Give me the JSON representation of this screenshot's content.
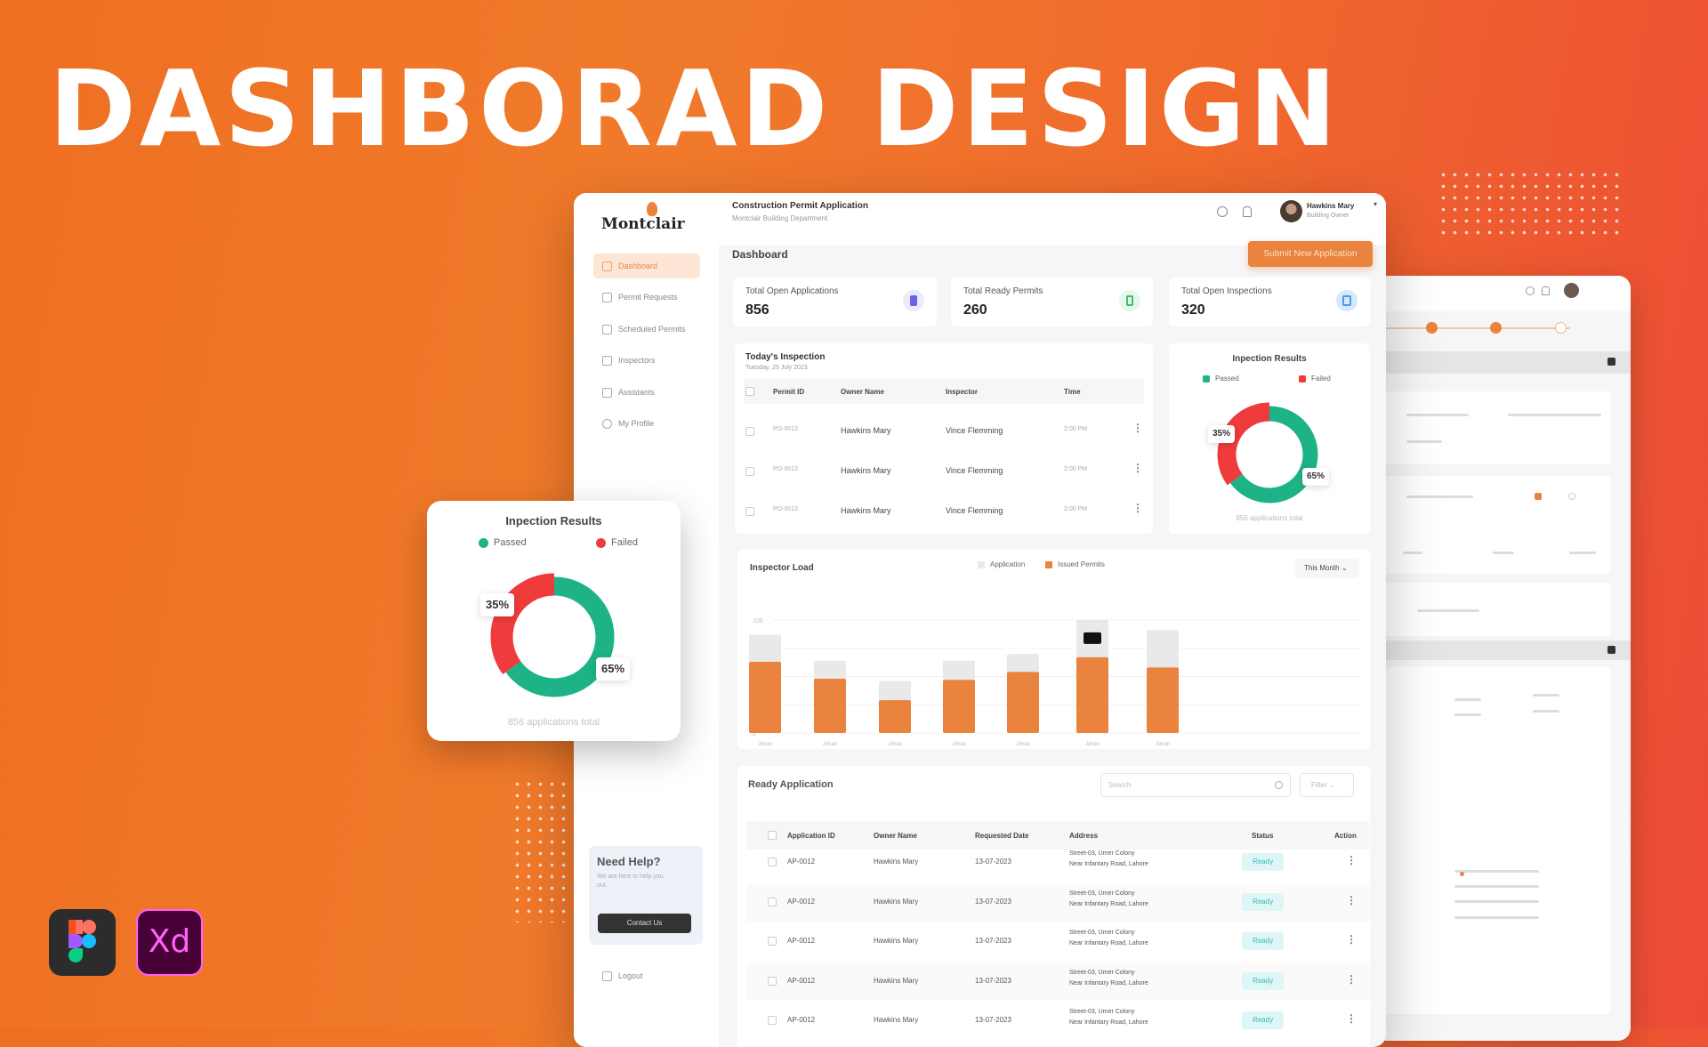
{
  "hero_title": "DASHBORAD DESIGN",
  "colors": {
    "accent": "#e9833e",
    "passed": "#1db386",
    "failed": "#ef3b3b",
    "application_bar": "#e9e9e9",
    "issued_bar": "#e9833e"
  },
  "sidebar": {
    "logo": "Montclair",
    "items": [
      {
        "label": "Dashboard",
        "icon": "grid-icon",
        "active": true
      },
      {
        "label": "Permit Requests",
        "icon": "document-icon"
      },
      {
        "label": "Scheduled Permits",
        "icon": "calendar-chart-icon"
      },
      {
        "label": "Inspectors",
        "icon": "users-icon"
      },
      {
        "label": "Assistants",
        "icon": "person-icon"
      },
      {
        "label": "My Profile",
        "icon": "profile-icon"
      }
    ],
    "help": {
      "title": "Need Help?",
      "text": "We are here to help you out.",
      "button": "Contact Us"
    },
    "logout": "Logout"
  },
  "header": {
    "title": "Construction Permit Application",
    "subtitle": "Montclair Building Department",
    "user_name": "Hawkins Mary",
    "user_role": "Building Owner"
  },
  "page": {
    "title": "Dashboard",
    "submit_button": "Submit New Application"
  },
  "stats": [
    {
      "label": "Total Open Applications",
      "value": "856",
      "icon_color": "#6c63e8",
      "icon_bg": "#ecebfd"
    },
    {
      "label": "Total Ready Permits",
      "value": "260",
      "icon_color": "#3fbf6a",
      "icon_bg": "#e6f7ec"
    },
    {
      "label": "Total Open Inspections",
      "value": "320",
      "icon_color": "#4a9be8",
      "icon_bg": "#e3f0fc"
    }
  ],
  "todays_inspection": {
    "title": "Today's Inspection",
    "date": "Tuesday, 25 July 2023",
    "columns": [
      "Permit ID",
      "Owner Name",
      "Inspector",
      "Time"
    ],
    "rows": [
      [
        "PO-0012",
        "Hawkins Mary",
        "Vince Flemming",
        "2:00 PM"
      ],
      [
        "PO-0012",
        "Hawkins Mary",
        "Vince Flemming",
        "2:00 PM"
      ],
      [
        "PO-0012",
        "Hawkins Mary",
        "Vince Flemming",
        "2:00 PM"
      ]
    ]
  },
  "inspection_results": {
    "title": "Inpection Results",
    "passed_label": "Passed",
    "failed_label": "Failed",
    "passed_pct": 65,
    "failed_pct": 35,
    "passed_text": "65%",
    "failed_text": "35%",
    "total_text": "856 applications total"
  },
  "chart_data": {
    "type": "bar",
    "title": "Inspector Load",
    "legend": [
      "Application",
      "Issued Permits"
    ],
    "legend_placement": "top-center",
    "period_select": "This Month",
    "categories": [
      "Johan",
      "Antoney",
      "Johan",
      "Johan",
      "Johan",
      "Johan",
      "Johan",
      "Johan",
      "Johan"
    ],
    "series": [
      {
        "name": "Application",
        "values": [
          55,
          70,
          87,
          64,
          46,
          64,
          70,
          100,
          91
        ]
      },
      {
        "name": "Issued Permits",
        "values": [
          40,
          53,
          63,
          48,
          29,
          47,
          54,
          67,
          58
        ]
      }
    ],
    "yticks": [
      "100",
      "75",
      "50",
      "25",
      "0"
    ],
    "ylim": [
      0,
      100
    ],
    "grid": true
  },
  "ready_application": {
    "title": "Ready Application",
    "search_placeholder": "Search",
    "filter_label": "Filter",
    "columns": [
      "Application ID",
      "Owner Name",
      "Requested Date",
      "Address",
      "Status",
      "Action"
    ],
    "rows": [
      [
        "AP-0012",
        "Hawkins Mary",
        "13-07-2023",
        "Street-03, Umer Colony",
        "Near Infantary Road, Lahore",
        "Ready"
      ],
      [
        "AP-0012",
        "Hawkins Mary",
        "13-07-2023",
        "Street-03, Umer Colony",
        "Near Infantary Road, Lahore",
        "Ready"
      ],
      [
        "AP-0012",
        "Hawkins Mary",
        "13-07-2023",
        "Street-03, Umer Colony",
        "Near Infantary Road, Lahore",
        "Ready"
      ],
      [
        "AP-0012",
        "Hawkins Mary",
        "13-07-2023",
        "Street-03, Umer Colony",
        "Near Infantary Road, Lahore",
        "Ready"
      ],
      [
        "AP-0012",
        "Hawkins Mary",
        "13-07-2023",
        "Street-03, Umer Colony",
        "Near Infantary Road, Lahore",
        "Ready"
      ]
    ]
  },
  "app_logos": {
    "figma": "figma-logo",
    "xd": "Xd"
  }
}
